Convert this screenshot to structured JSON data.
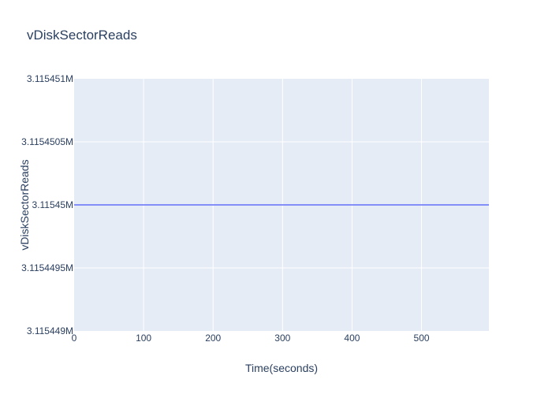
{
  "chart_data": {
    "type": "line",
    "title": "vDiskSectorReads",
    "xlabel": "Time(seconds)",
    "ylabel": "vDiskSectorReads",
    "xlim": [
      0,
      597
    ],
    "ylim": [
      3115449,
      3115451
    ],
    "x_ticks": [
      {
        "value": 0,
        "label": "0"
      },
      {
        "value": 100,
        "label": "100"
      },
      {
        "value": 200,
        "label": "200"
      },
      {
        "value": 300,
        "label": "300"
      },
      {
        "value": 400,
        "label": "400"
      },
      {
        "value": 500,
        "label": "500"
      }
    ],
    "y_ticks": [
      {
        "value": 3115449,
        "label": "3.115449M"
      },
      {
        "value": 3115449.5,
        "label": "3.1154495M"
      },
      {
        "value": 3115450,
        "label": "3.11545M"
      },
      {
        "value": 3115450.5,
        "label": "3.1154505M"
      },
      {
        "value": 3115451,
        "label": "3.115451M"
      }
    ],
    "grid": true,
    "series": [
      {
        "color": "#636efa",
        "x": [
          0,
          597
        ],
        "y": [
          3115450,
          3115450
        ]
      }
    ]
  },
  "colors": {
    "plot_bg": "#e5ecf6",
    "grid": "#ffffff",
    "text": "#2a3f5f"
  }
}
